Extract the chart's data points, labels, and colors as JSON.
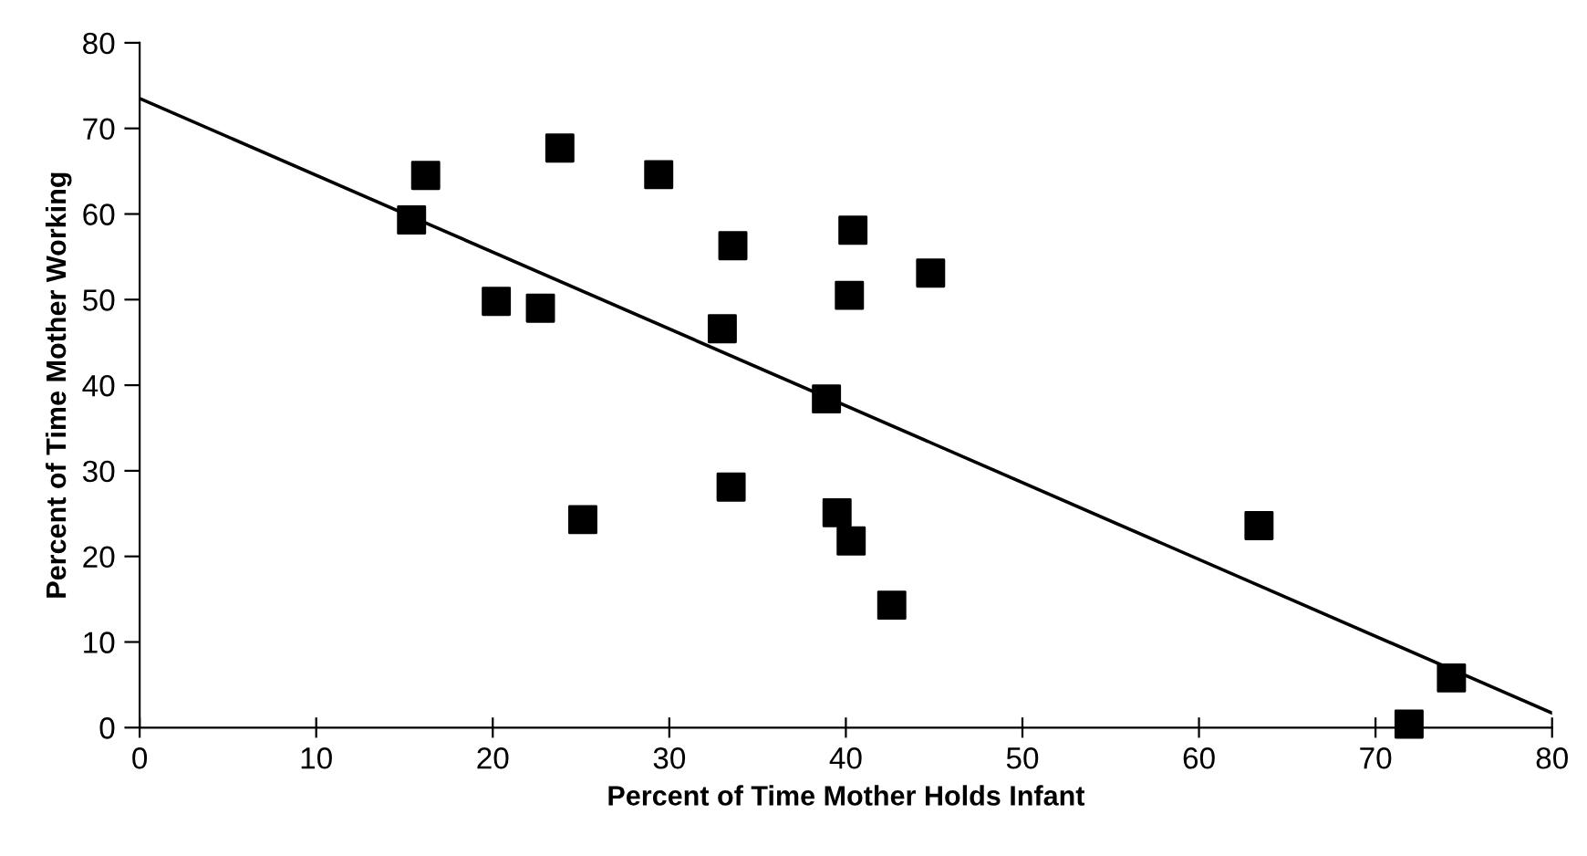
{
  "chart_data": {
    "type": "scatter",
    "xlabel": "Percent of Time Mother Holds Infant",
    "ylabel": "Percent of Time Mother Working",
    "xlim": [
      0,
      80
    ],
    "xticks": [
      0,
      10,
      20,
      30,
      40,
      50,
      60,
      70,
      80
    ],
    "ylim": [
      0,
      80
    ],
    "yticks": [
      0,
      10,
      20,
      30,
      40,
      50,
      60,
      70,
      80
    ],
    "grid": false,
    "legend": false,
    "series": [
      {
        "marker": "square",
        "color": "#000000",
        "x": [
          15.4,
          16.2,
          20.2,
          22.7,
          23.8,
          25.1,
          29.4,
          33.6,
          33.0,
          33.5,
          40.4,
          44.8,
          40.2,
          38.9,
          39.5,
          40.3,
          42.6,
          63.4,
          74.3,
          71.9
        ],
        "values": [
          59.3,
          64.5,
          49.8,
          49.0,
          67.7,
          24.3,
          64.6,
          56.3,
          46.6,
          28.1,
          58.1,
          53.1,
          50.5,
          38.4,
          25.1,
          21.8,
          14.3,
          23.6,
          5.8,
          0.4
        ]
      },
      {
        "type": "line",
        "marker": "none",
        "line_style": "solid",
        "color": "#000000",
        "x": [
          0,
          80
        ],
        "values": [
          73.5,
          1.7
        ]
      }
    ]
  }
}
